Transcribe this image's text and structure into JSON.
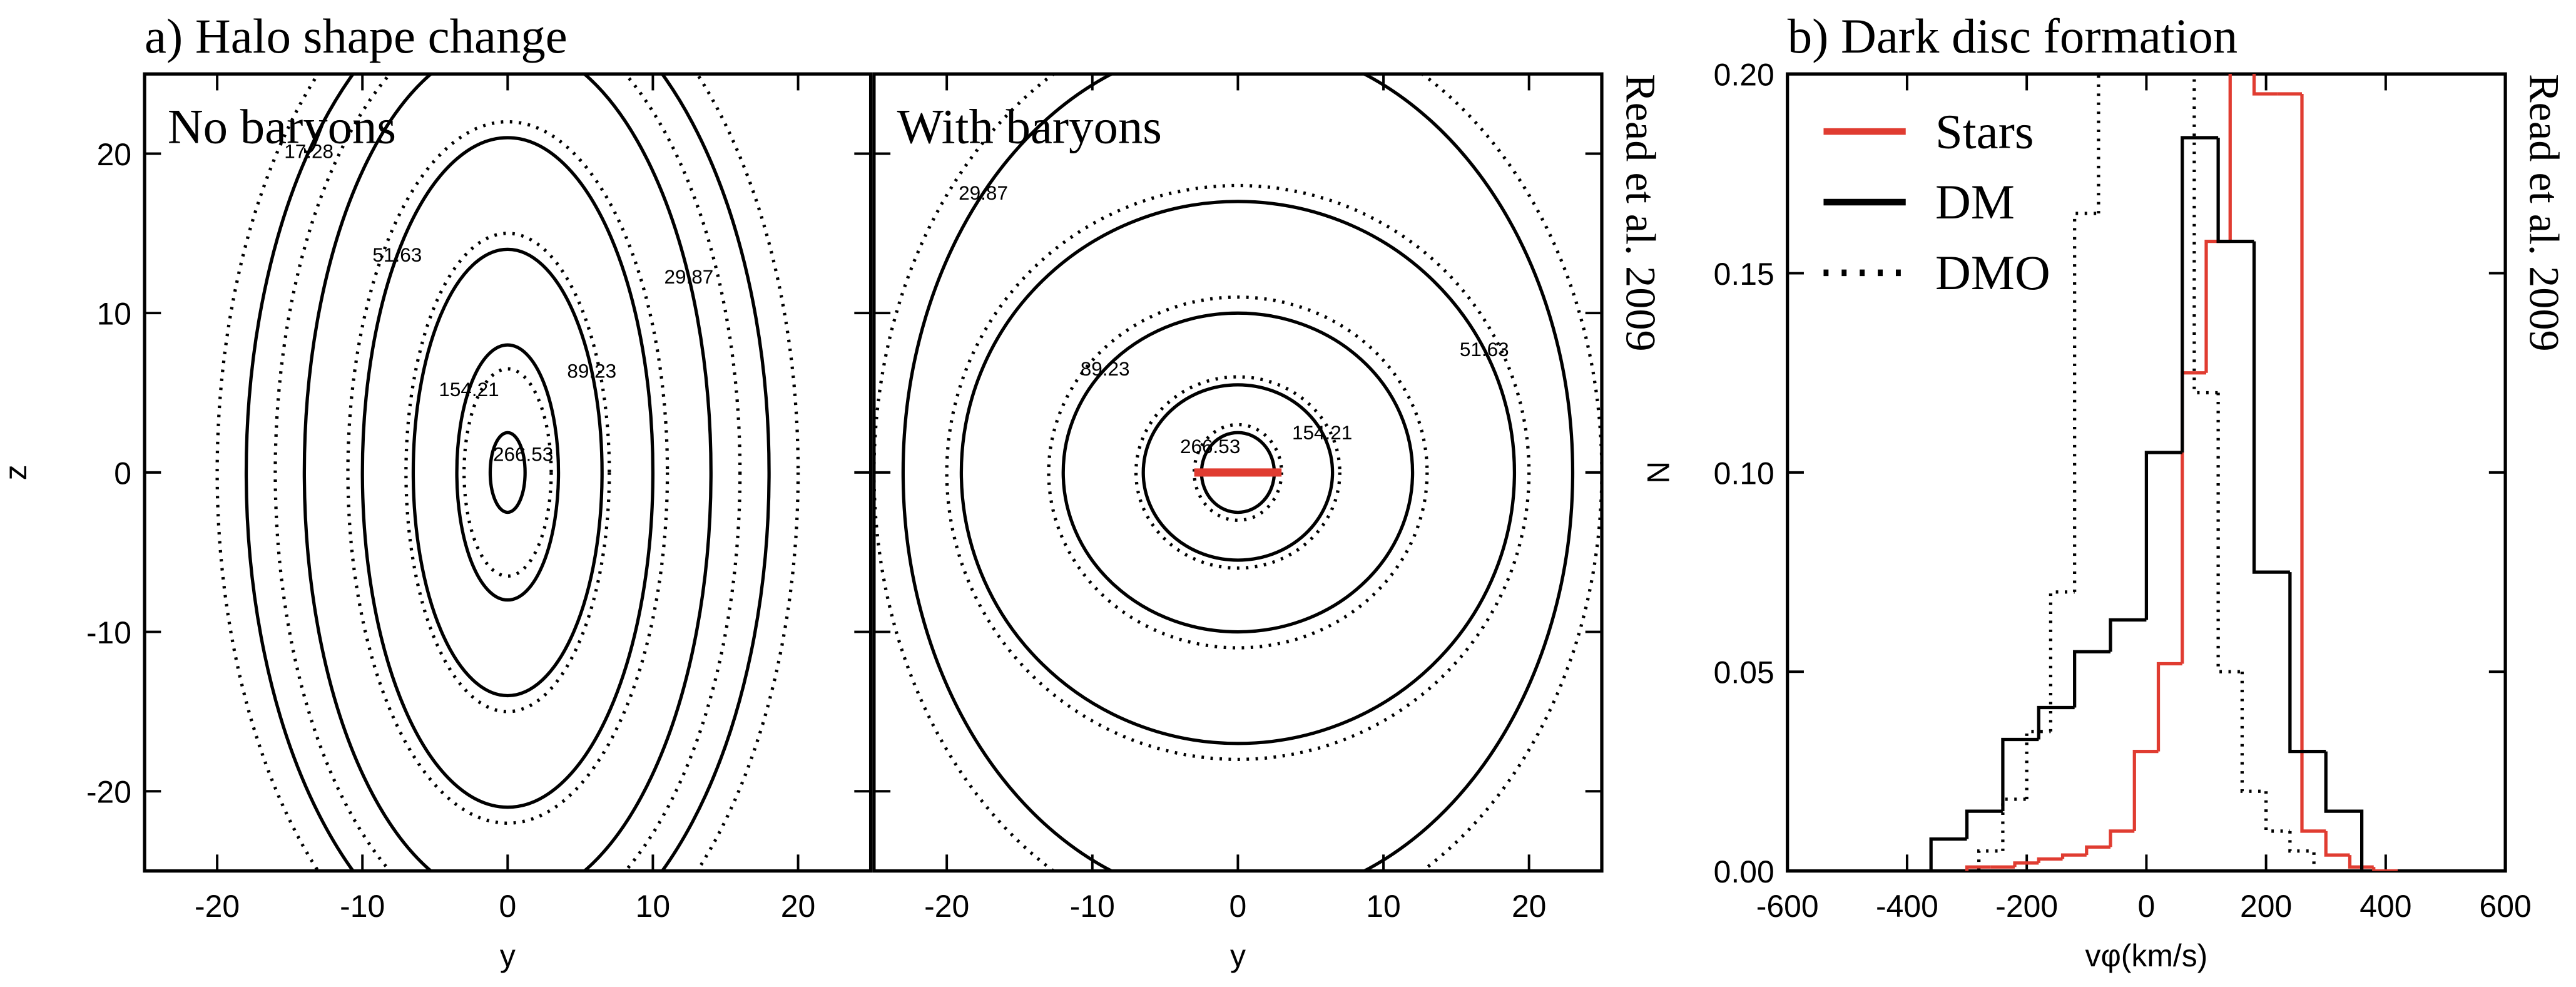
{
  "chart_data": [
    {
      "type": "contour",
      "title": "a) Halo shape change",
      "panel_label": "No baryons",
      "note": "Read et al. 2009",
      "xlabel": "y",
      "ylabel": "z",
      "xlim": [
        -25,
        25
      ],
      "ylim": [
        -25,
        25
      ],
      "xticks": [
        -20,
        -10,
        0,
        10,
        20
      ],
      "yticks": [
        -20,
        -10,
        0,
        10,
        20
      ],
      "contours": [
        {
          "level": 17.28,
          "half_width": 18,
          "half_height": 31
        },
        {
          "level": 29.87,
          "half_width": 14,
          "half_height": 27
        },
        {
          "level": 51.63,
          "half_width": 10,
          "half_height": 21
        },
        {
          "level": 89.23,
          "half_width": 6.5,
          "half_height": 14
        },
        {
          "level": 154.21,
          "half_width": 3.5,
          "half_height": 8
        },
        {
          "level": 266.53,
          "half_width": 1.2,
          "half_height": 2.5
        }
      ],
      "contours_dotted": [
        {
          "level": 17.28,
          "half_width": 20,
          "half_height": 33
        },
        {
          "level": 29.87,
          "half_width": 16,
          "half_height": 29
        },
        {
          "level": 51.63,
          "half_width": 11,
          "half_height": 22
        },
        {
          "level": 89.23,
          "half_width": 7,
          "half_height": 15
        },
        {
          "level": 154.21,
          "half_width": 3,
          "half_height": 6.5
        }
      ]
    },
    {
      "type": "contour",
      "panel_label": "With baryons",
      "note": "Read et al. 2009",
      "xlabel": "y",
      "xlim": [
        -25,
        25
      ],
      "ylim": [
        -25,
        25
      ],
      "xticks": [
        -20,
        -10,
        0,
        10,
        20
      ],
      "yticks": [
        -20,
        -10,
        0,
        10,
        20
      ],
      "contours": [
        {
          "level": 29.87,
          "half_width": 23,
          "half_height": 27
        },
        {
          "level": 51.63,
          "half_width": 19,
          "half_height": 17
        },
        {
          "level": 89.23,
          "half_width": 12,
          "half_height": 10
        },
        {
          "level": 154.21,
          "half_width": 6.5,
          "half_height": 5.5
        },
        {
          "level": 266.53,
          "half_width": 2.5,
          "half_height": 2.5
        }
      ],
      "contours_dotted": [
        {
          "level": 29.87,
          "half_width": 25,
          "half_height": 29
        },
        {
          "level": 51.63,
          "half_width": 20,
          "half_height": 18
        },
        {
          "level": 89.23,
          "half_width": 13,
          "half_height": 11
        },
        {
          "level": 154.21,
          "half_width": 7,
          "half_height": 6
        },
        {
          "level": 266.53,
          "half_width": 3,
          "half_height": 3
        }
      ],
      "disc": {
        "y": [
          -3,
          3
        ],
        "z": 0,
        "color": "#e03c31"
      }
    },
    {
      "type": "histogram",
      "title": "b) Dark disc formation",
      "note": "Read et al. 2009",
      "xlabel": "vφ(km/s)",
      "ylabel": "N",
      "xlim": [
        -600,
        600
      ],
      "ylim": [
        0,
        0.2
      ],
      "xticks": [
        -600,
        -400,
        -200,
        0,
        200,
        400,
        600
      ],
      "yticks": [
        {
          "value": 0,
          "label": "0.00"
        },
        {
          "value": 0.05,
          "label": "0.05"
        },
        {
          "value": 0.1,
          "label": "0.10"
        },
        {
          "value": 0.15,
          "label": "0.15"
        },
        {
          "value": 0.2,
          "label": "0.20"
        }
      ],
      "series": [
        {
          "name": "Stars",
          "color": "#e03c31",
          "dash": "solid",
          "bins": [
            -300,
            -260,
            -220,
            -180,
            -140,
            -100,
            -60,
            -20,
            20,
            60,
            100,
            140,
            180,
            220,
            260,
            300,
            340,
            380,
            420
          ],
          "values": [
            0.001,
            0.001,
            0.002,
            0.003,
            0.004,
            0.006,
            0.01,
            0.03,
            0.052,
            0.125,
            0.158,
            0.21,
            0.195,
            0.195,
            0.01,
            0.004,
            0.001,
            0.0
          ]
        },
        {
          "name": "DM",
          "color": "#000000",
          "dash": "solid",
          "bins": [
            -360,
            -300,
            -240,
            -180,
            -120,
            -60,
            0,
            60,
            120,
            180,
            240,
            300,
            360
          ],
          "values": [
            0.008,
            0.015,
            0.033,
            0.041,
            0.055,
            0.063,
            0.105,
            0.184,
            0.158,
            0.075,
            0.03,
            0.015
          ]
        },
        {
          "name": "DMO",
          "color": "#000000",
          "dash": "dotted",
          "bins": [
            -280,
            -240,
            -200,
            -160,
            -120,
            -80,
            -40,
            0,
            40,
            80,
            120,
            160,
            200,
            240,
            280
          ],
          "values": [
            0.005,
            0.018,
            0.035,
            0.07,
            0.165,
            0.21,
            0.21,
            0.21,
            0.21,
            0.12,
            0.05,
            0.02,
            0.01,
            0.005
          ]
        }
      ]
    }
  ]
}
